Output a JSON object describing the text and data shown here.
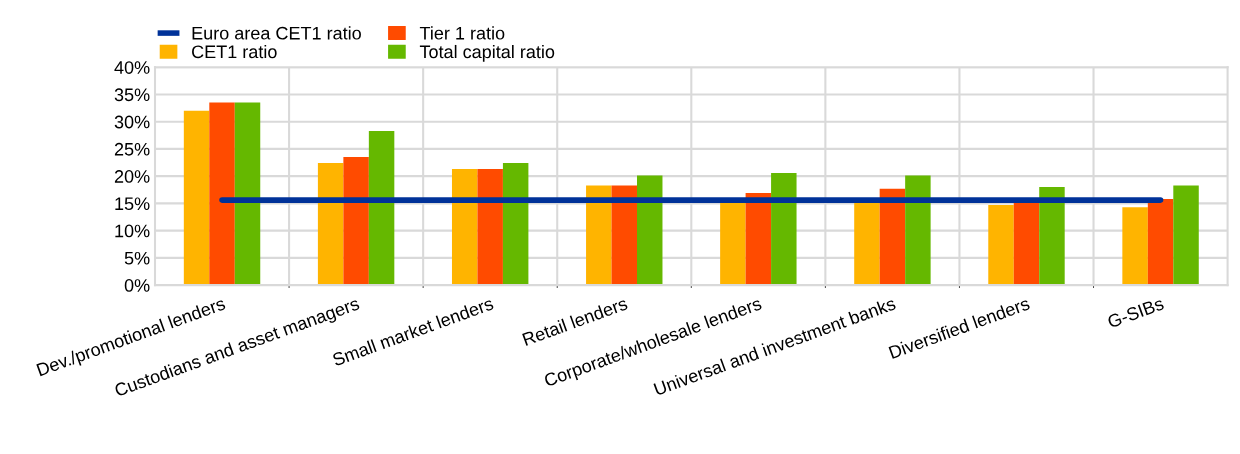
{
  "chart_data": {
    "type": "bar",
    "categories": [
      "Dev./promotional lenders",
      "Custodians and asset managers",
      "Small market lenders",
      "Retail lenders",
      "Corporate/wholesale lenders",
      "Universal and investment banks",
      "Diversified lenders",
      "G-SIBs"
    ],
    "series": [
      {
        "name": "Euro area CET1 ratio",
        "type": "line",
        "color": "#003299",
        "values": [
          15.6,
          15.6,
          15.6,
          15.6,
          15.6,
          15.6,
          15.6,
          15.6
        ]
      },
      {
        "name": "CET1 ratio",
        "color": "#ffb400",
        "values": [
          32.0,
          22.4,
          21.3,
          18.3,
          15.3,
          15.3,
          14.7,
          14.3
        ]
      },
      {
        "name": "Tier 1 ratio",
        "color": "#ff4b00",
        "values": [
          33.5,
          23.5,
          21.3,
          18.3,
          16.9,
          17.7,
          15.5,
          15.8
        ]
      },
      {
        "name": "Total capital ratio",
        "color": "#65b800",
        "values": [
          33.5,
          28.3,
          22.4,
          20.1,
          20.6,
          20.1,
          18.0,
          18.3
        ]
      }
    ],
    "ylim": [
      0,
      40
    ],
    "yticks": [
      {
        "value": 0,
        "label": "0%"
      },
      {
        "value": 5,
        "label": "5%"
      },
      {
        "value": 10,
        "label": "10%"
      },
      {
        "value": 15,
        "label": "15%"
      },
      {
        "value": 20,
        "label": "20%"
      },
      {
        "value": 25,
        "label": "25%"
      },
      {
        "value": 30,
        "label": "30%"
      },
      {
        "value": 35,
        "label": "35%"
      },
      {
        "value": 40,
        "label": "40%"
      }
    ],
    "grid": true,
    "legend": "top left"
  }
}
